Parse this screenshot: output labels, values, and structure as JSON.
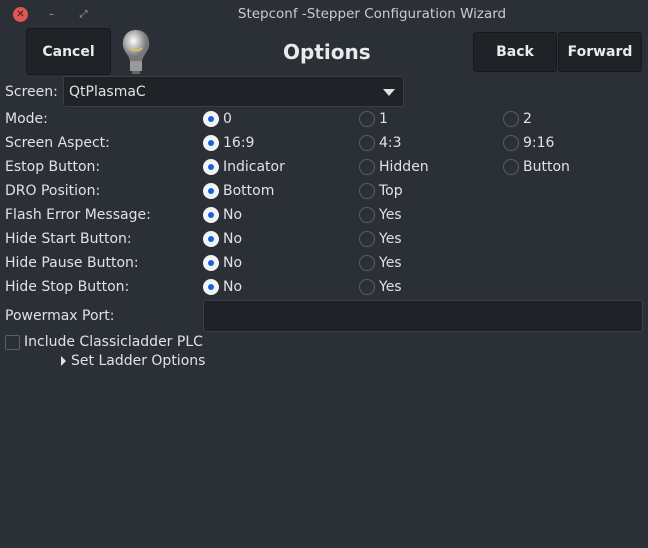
{
  "window": {
    "title": "Stepconf -Stepper Configuration Wizard"
  },
  "header": {
    "cancel": "Cancel",
    "heading": "Options",
    "back": "Back",
    "forward": "Forward"
  },
  "screen": {
    "label": "Screen:",
    "value": "QtPlasmaC"
  },
  "rows": [
    {
      "label": "Mode:",
      "options": [
        "0",
        "1",
        "2"
      ],
      "selected": 0
    },
    {
      "label": "Screen Aspect:",
      "options": [
        "16:9",
        "4:3",
        "9:16"
      ],
      "selected": 0
    },
    {
      "label": "Estop Button:",
      "options": [
        "Indicator",
        "Hidden",
        "Button"
      ],
      "selected": 0
    },
    {
      "label": "DRO Position:",
      "options": [
        "Bottom",
        "Top"
      ],
      "selected": 0
    },
    {
      "label": "Flash Error Message:",
      "options": [
        "No",
        "Yes"
      ],
      "selected": 0
    },
    {
      "label": "Hide Start Button:",
      "options": [
        "No",
        "Yes"
      ],
      "selected": 0
    },
    {
      "label": "Hide Pause Button:",
      "options": [
        "No",
        "Yes"
      ],
      "selected": 0
    },
    {
      "label": "Hide Stop Button:",
      "options": [
        "No",
        "Yes"
      ],
      "selected": 0
    }
  ],
  "powermax": {
    "label": "Powermax Port:",
    "value": ""
  },
  "classicladder": {
    "label": "Include Classicladder PLC",
    "checked": false
  },
  "ladder_expander": {
    "label": "Set Ladder Options",
    "expanded": false
  }
}
